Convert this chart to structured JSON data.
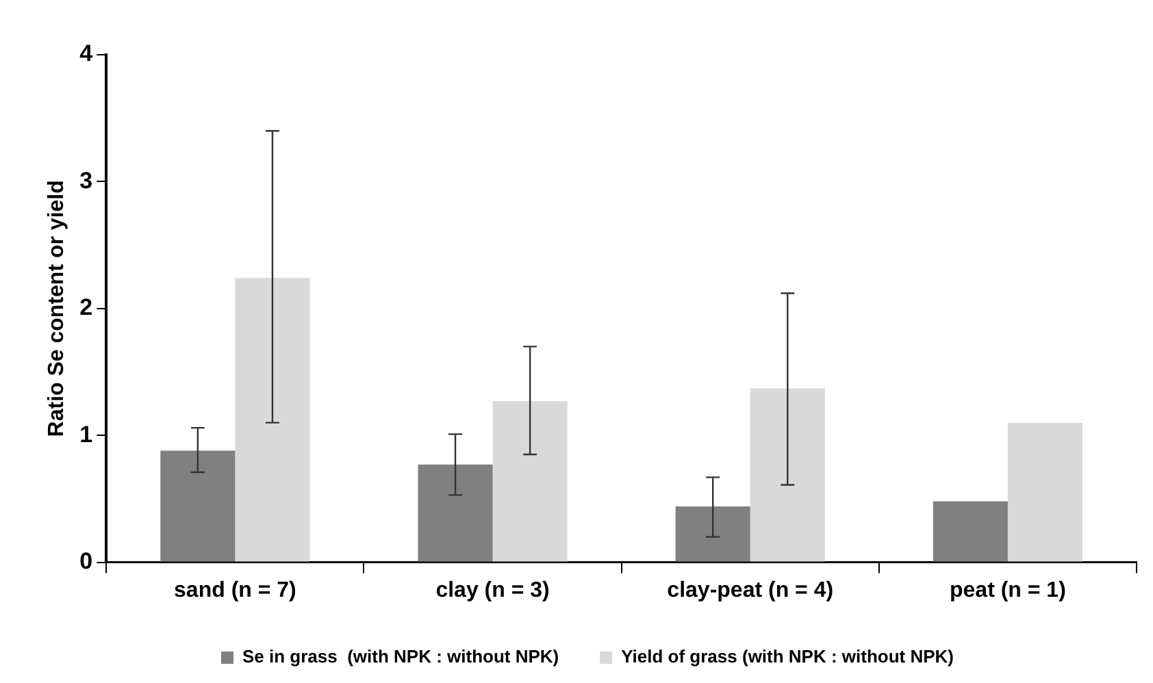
{
  "chart_data": {
    "type": "bar",
    "ylabel": "Ratio Se content or yield",
    "categories": [
      "sand (n = 7)",
      "clay (n = 3)",
      "clay-peat (n = 4)",
      "peat (n = 1)"
    ],
    "series": [
      {
        "name": "Se in grass  (with NPK : without NPK)",
        "color": "#808080",
        "values": [
          0.88,
          0.77,
          0.44,
          0.48
        ],
        "errors": [
          [
            0.71,
            1.06
          ],
          [
            0.53,
            1.01
          ],
          [
            0.2,
            0.67
          ],
          null
        ]
      },
      {
        "name": "Yield of grass (with NPK : without NPK)",
        "color": "#d9d9d9",
        "values": [
          2.24,
          1.27,
          1.37,
          1.1
        ],
        "errors": [
          [
            1.1,
            3.4
          ],
          [
            0.85,
            1.7
          ],
          [
            0.61,
            2.12
          ],
          null
        ]
      }
    ],
    "ylim": [
      0,
      4
    ],
    "yticks": [
      0,
      1,
      2,
      3,
      4
    ],
    "grid": false,
    "legend": "bottom"
  }
}
